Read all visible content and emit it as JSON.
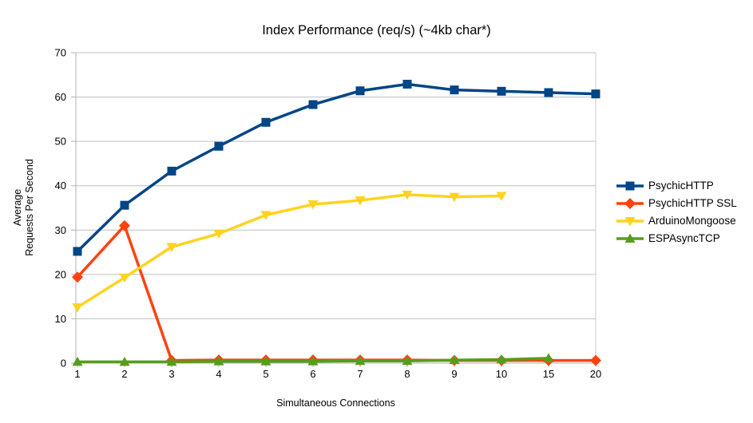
{
  "chart_data": {
    "type": "line",
    "title": "Index Performance (req/s) (~4kb char*)",
    "xlabel": "Simultaneous Connections",
    "ylabel_lines": [
      "Average",
      "Requests Per Second"
    ],
    "categories": [
      "1",
      "2",
      "3",
      "4",
      "5",
      "6",
      "7",
      "8",
      "9",
      "10",
      "15",
      "20"
    ],
    "ylim": [
      0,
      70
    ],
    "ytick_step": 10,
    "yticks": [
      0,
      10,
      20,
      30,
      40,
      50,
      60,
      70
    ],
    "grid": "horizontal",
    "legend_position": "right",
    "colors": {
      "grid": "#bfbfbf",
      "axis": "#b3b3b3",
      "right_border": "#cccccc",
      "text": "#000000",
      "background": "#ffffff"
    },
    "series": [
      {
        "name": "PsychicHTTP",
        "color": "#004586",
        "marker": "square",
        "values": [
          25.2,
          35.6,
          43.3,
          48.9,
          54.3,
          58.3,
          61.4,
          62.9,
          61.6,
          61.3,
          61.0,
          60.7
        ]
      },
      {
        "name": "PsychicHTTP SSL",
        "color": "#FF420E",
        "marker": "diamond",
        "values": [
          19.4,
          31.0,
          0.6,
          0.7,
          0.7,
          0.7,
          0.7,
          0.7,
          0.6,
          0.6,
          0.6,
          0.6
        ]
      },
      {
        "name": "ArduinoMongoose",
        "color": "#FFD320",
        "marker": "triangle-down",
        "values": [
          12.6,
          19.3,
          26.2,
          29.2,
          33.4,
          35.8,
          36.7,
          38.0,
          37.5,
          37.7,
          null,
          null
        ]
      },
      {
        "name": "ESPAsyncTCP",
        "color": "#579D1C",
        "marker": "triangle-up",
        "values": [
          0.3,
          0.3,
          0.3,
          0.4,
          0.4,
          0.4,
          0.5,
          0.5,
          0.7,
          0.8,
          1.1,
          null
        ]
      }
    ]
  }
}
